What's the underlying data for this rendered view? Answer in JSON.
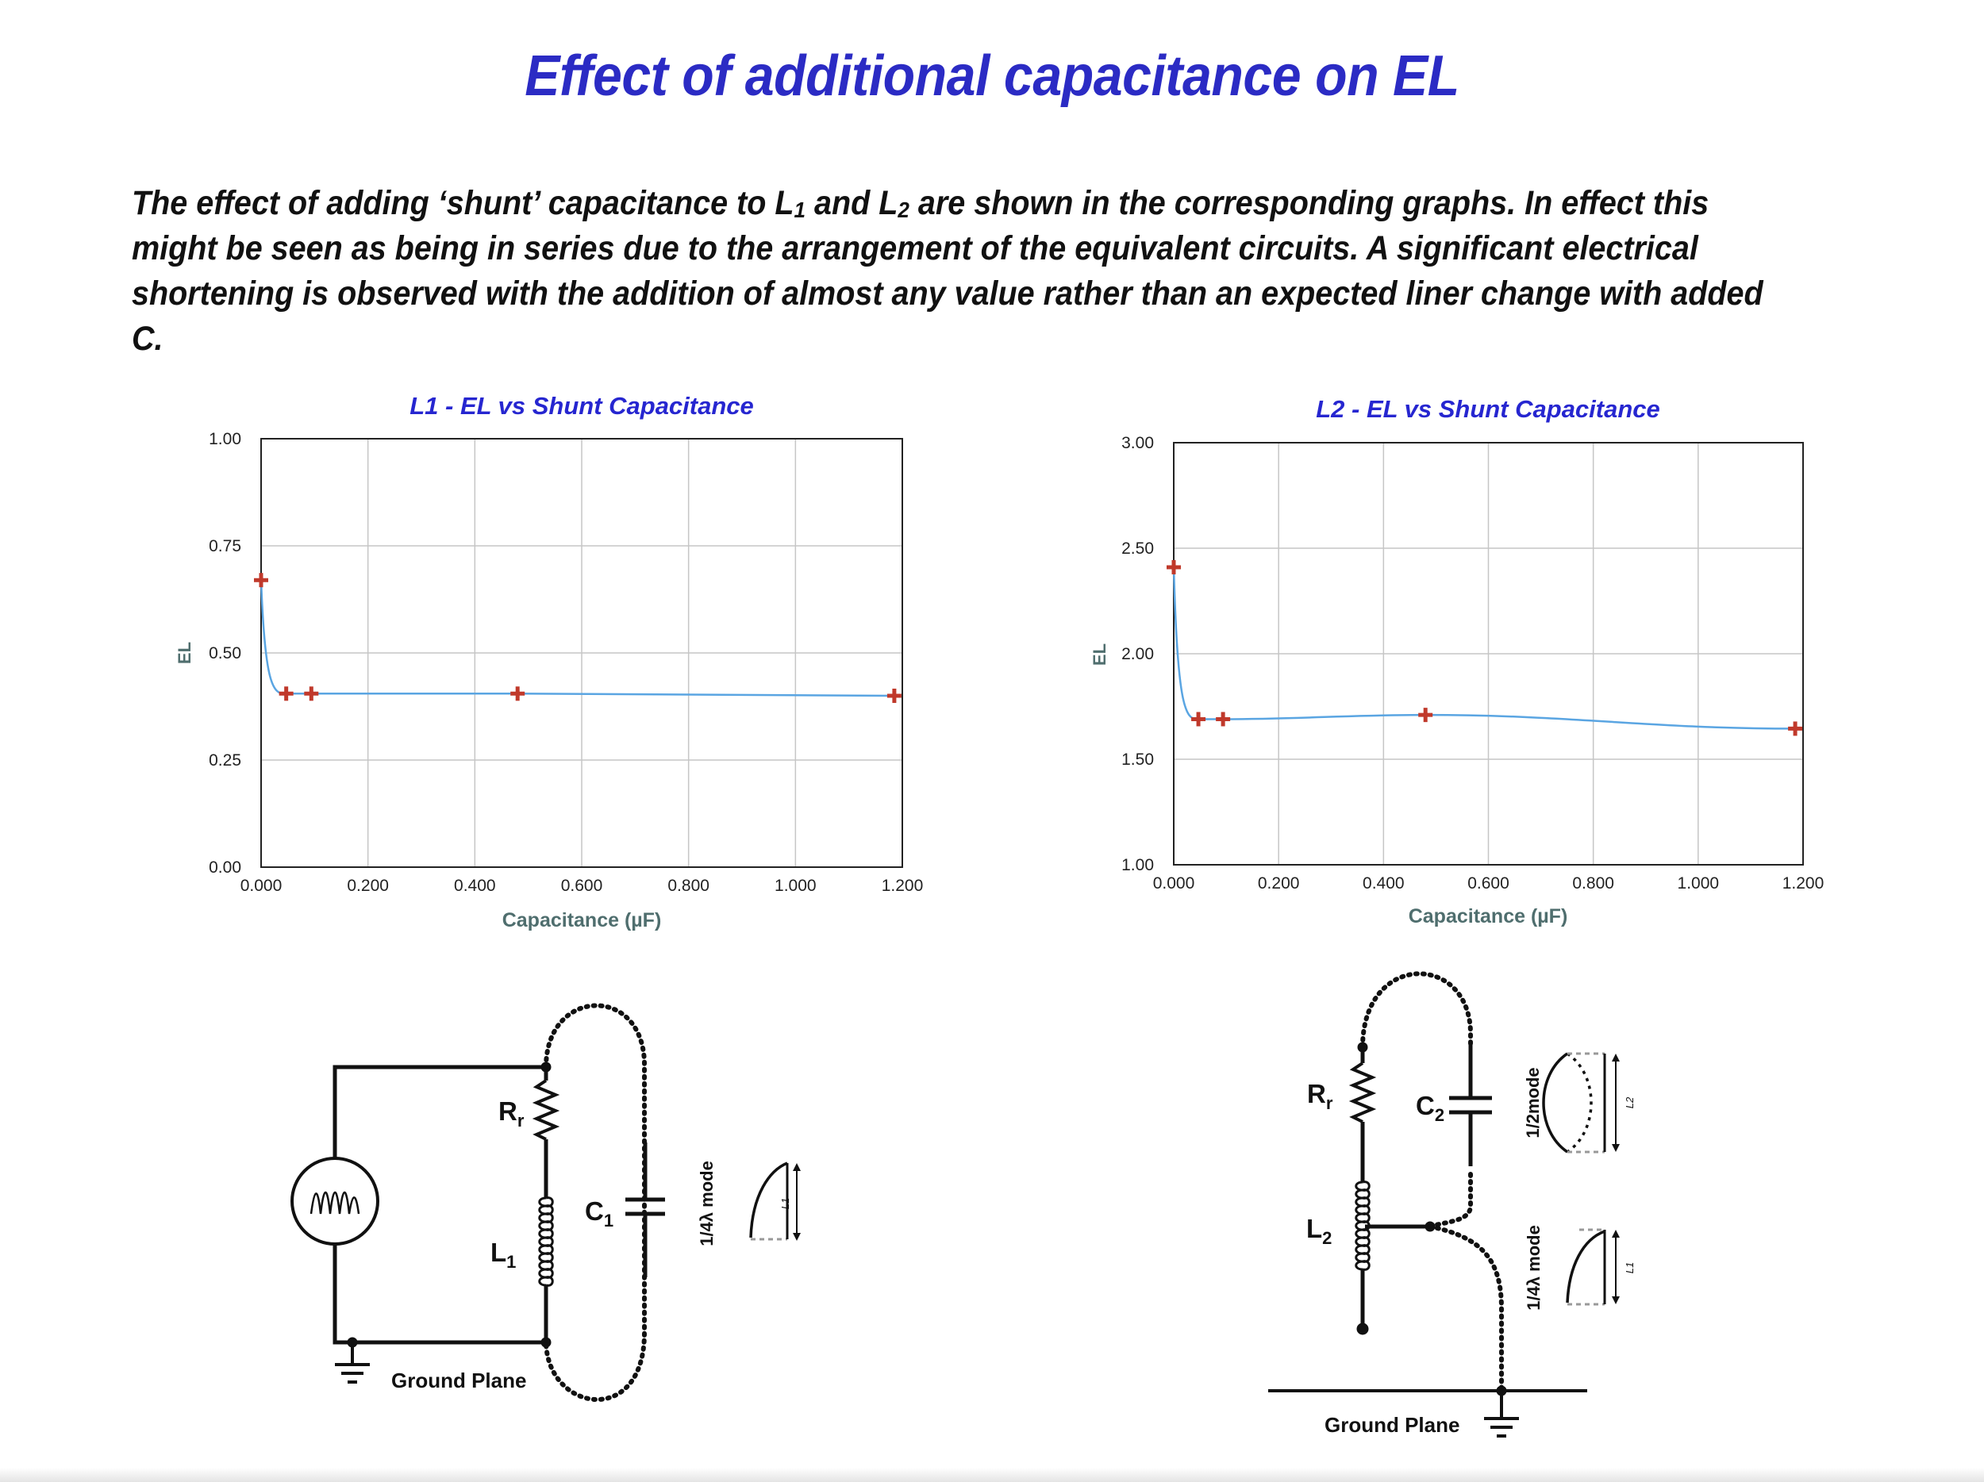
{
  "page": {
    "title": "Effect of additional capacitance on EL",
    "intro_parts": [
      "The effect of adding ‘shunt’ capacitance to L",
      "1",
      " and L",
      "2",
      " are shown in the corresponding graphs. In effect this might be seen as being in series due to the arrangement of the equivalent circuits. A significant electrical shortening is observed with the addition of almost any value rather than an expected liner change with added C."
    ]
  },
  "colors": {
    "title": "#2b2bc4",
    "chart_title": "#2626d0",
    "axis_label": "#4f6e6e",
    "line": "#5aa5e2",
    "marker": "#c0392b",
    "grid": "#c6c6c6"
  },
  "chart_data": [
    {
      "type": "line",
      "title": "L1 - EL vs Shunt Capacitance",
      "xlabel": "Capacitance (µF)",
      "ylabel": "EL",
      "xlim": [
        0,
        1.2
      ],
      "ylim": [
        0,
        1
      ],
      "x_ticks": [
        "0.000",
        "0.200",
        "0.400",
        "0.600",
        "0.800",
        "1.000",
        "1.200"
      ],
      "y_ticks": [
        "0.00",
        "0.25",
        "0.50",
        "0.75",
        "1.00"
      ],
      "grid": true,
      "marker": "cross",
      "series": [
        {
          "x": [
            0.0,
            0.047,
            0.094,
            0.48,
            1.185
          ],
          "y": [
            0.67,
            0.405,
            0.405,
            0.405,
            0.4
          ]
        }
      ]
    },
    {
      "type": "line",
      "title": "L2 - EL vs Shunt Capacitance",
      "xlabel": "Capacitance (µF)",
      "ylabel": "EL",
      "xlim": [
        0,
        1.2
      ],
      "ylim": [
        1,
        3
      ],
      "x_ticks": [
        "0.000",
        "0.200",
        "0.400",
        "0.600",
        "0.800",
        "1.000",
        "1.200"
      ],
      "y_ticks": [
        "1.00",
        "1.50",
        "2.00",
        "2.50",
        "3.00"
      ],
      "grid": true,
      "marker": "cross",
      "series": [
        {
          "x": [
            0.0,
            0.047,
            0.094,
            0.48,
            1.185
          ],
          "y": [
            2.41,
            1.69,
            1.69,
            1.71,
            1.645
          ]
        }
      ]
    }
  ],
  "diagrams": {
    "left": {
      "resistor_label": "R",
      "resistor_sub": "r",
      "inductor_label": "L",
      "inductor_sub": "1",
      "capacitor_label": "C",
      "capacitor_sub": "1",
      "mode_label": "1/4λ mode",
      "length_label": "L1",
      "ground_label": "Ground Plane"
    },
    "right": {
      "resistor_label": "R",
      "resistor_sub": "r",
      "inductor_label": "L",
      "inductor_sub": "2",
      "capacitor_label": "C",
      "capacitor_sub": "2",
      "mode_top_label": "1/2mode",
      "mode_bottom_label": "1/4λ mode",
      "length_top_label": "L2",
      "length_bottom_label": "L1",
      "ground_label": "Ground Plane"
    }
  }
}
